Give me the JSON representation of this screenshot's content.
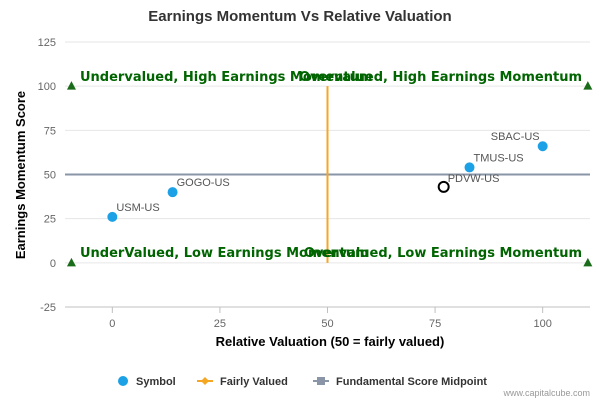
{
  "chart_data": {
    "type": "scatter",
    "title": "Earnings Momentum Vs Relative Valuation",
    "xlabel": "Relative Valuation (50 = fairly valued)",
    "ylabel": "Earnings Momentum Score",
    "xlim": [
      -11,
      111
    ],
    "ylim": [
      -25,
      125
    ],
    "xticks": [
      "0",
      "25",
      "50",
      "75",
      "100"
    ],
    "yticks": [
      "125",
      "100",
      "75",
      "50",
      "25",
      "0",
      "-25"
    ],
    "grid": "horizontal",
    "points": [
      {
        "label": "USM-US",
        "x": 0,
        "y": 26,
        "style": "filled"
      },
      {
        "label": "GOGO-US",
        "x": 14,
        "y": 40,
        "style": "filled"
      },
      {
        "label": "PDVW-US",
        "x": 77,
        "y": 43,
        "style": "hollow"
      },
      {
        "label": "TMUS-US",
        "x": 83,
        "y": 54,
        "style": "filled"
      },
      {
        "label": "SBAC-US",
        "x": 100,
        "y": 66,
        "style": "filled"
      }
    ],
    "fairly_valued_x": 50,
    "midpoint_y": 50,
    "quadrants": {
      "top_left": "Undervalued, High Earnings Momentum",
      "top_right": "Overvalued, High Earnings Momentum",
      "bottom_left": "UnderValued, Low Earnings Momentum",
      "bottom_right": "Overvalued, Low Earnings Momentum"
    },
    "legend": {
      "position": "bottom",
      "items": [
        "Symbol",
        "Fairly Valued",
        "Fundamental Score Midpoint"
      ]
    },
    "colors": {
      "symbol": "#1da1e6",
      "fairly_valued": "#f5a623",
      "midpoint": "#8a96a8",
      "quadrant_text": "#006400",
      "marker": "#1a6b1a"
    }
  },
  "credit": "www.capitalcube.com"
}
